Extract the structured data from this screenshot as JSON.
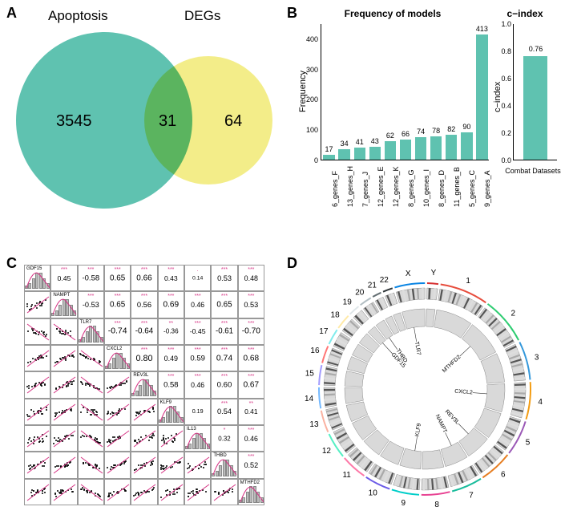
{
  "panelA": {
    "label": "A",
    "left_title": "Apoptosis",
    "right_title": "DEGs",
    "left_count": "3545",
    "intersection": "31",
    "right_count": "64",
    "left_color": "#5fc2b0",
    "right_color": "#f3ed89",
    "overlap_color": "#a7a8c9"
  },
  "panelB": {
    "label": "B",
    "freq_chart": {
      "title": "Frequency of models",
      "ylabel": "Frequency",
      "ylim": [
        0,
        450
      ],
      "ytick_step": 100,
      "bar_color": "#5fc2b0",
      "categories": [
        "6_genes_F",
        "13_genes_H",
        "7_genes_J",
        "12_genes_E",
        "12_genes_K",
        "8_genes_G",
        "10_genes_I",
        "8_genes_D",
        "11_genes_B",
        "5_genes_C",
        "9_genes_A"
      ],
      "values": [
        17,
        34,
        41,
        43,
        62,
        66,
        74,
        78,
        82,
        90,
        413
      ]
    },
    "cindex_chart": {
      "title": "c−index",
      "ylabel": "c−index",
      "xlabel": "Combat Datasets",
      "ylim": [
        0,
        1.0
      ],
      "ytick_step": 0.2,
      "bar_color": "#5fc2b0",
      "value": 0.76,
      "value_label": "0.76"
    }
  },
  "panelC": {
    "label": "C",
    "genes": [
      "GDF15",
      "NAMPT",
      "TLR7",
      "CXCL2",
      "REV3L",
      "KLF9",
      "IL13",
      "THBD",
      "MTHFD2"
    ],
    "upper": [
      [
        null,
        "0.45",
        "-0.58",
        "0.65",
        "0.66",
        "0.43",
        "0.14",
        "0.53",
        "0.48"
      ],
      [
        null,
        null,
        "-0.53",
        "0.65",
        "0.56",
        "0.69",
        "0.46",
        "0.65",
        "0.53"
      ],
      [
        null,
        null,
        null,
        "-0.74",
        "-0.64",
        "-0.36",
        "-0.45",
        "-0.61",
        "-0.70"
      ],
      [
        null,
        null,
        null,
        null,
        "0.80",
        "0.49",
        "0.59",
        "0.74",
        "0.68"
      ],
      [
        null,
        null,
        null,
        null,
        null,
        "0.58",
        "0.46",
        "0.60",
        "0.67"
      ],
      [
        null,
        null,
        null,
        null,
        null,
        null,
        "0.19",
        "0.54",
        "0.41"
      ],
      [
        null,
        null,
        null,
        null,
        null,
        null,
        null,
        "0.32",
        "0.46"
      ],
      [
        null,
        null,
        null,
        null,
        null,
        null,
        null,
        null,
        "0.52"
      ],
      [
        null,
        null,
        null,
        null,
        null,
        null,
        null,
        null,
        null
      ]
    ],
    "stars": [
      [
        null,
        "***",
        "***",
        "***",
        "***",
        "***",
        ".",
        "***",
        "***"
      ],
      [
        null,
        null,
        "***",
        "***",
        "***",
        "***",
        "***",
        "***",
        "***"
      ],
      [
        null,
        null,
        null,
        "***",
        "***",
        "**",
        "***",
        "***",
        "***"
      ],
      [
        null,
        null,
        null,
        null,
        "***",
        "***",
        "***",
        "***",
        "***"
      ],
      [
        null,
        null,
        null,
        null,
        null,
        "***",
        "***",
        "***",
        "***"
      ],
      [
        null,
        null,
        null,
        null,
        null,
        null,
        "",
        "***",
        "**"
      ],
      [
        null,
        null,
        null,
        null,
        null,
        null,
        null,
        "*",
        "***"
      ],
      [
        null,
        null,
        null,
        null,
        null,
        null,
        null,
        null,
        "***"
      ],
      [
        null,
        null,
        null,
        null,
        null,
        null,
        null,
        null,
        null
      ]
    ]
  },
  "panelD": {
    "label": "D",
    "chromosomes": [
      "1",
      "2",
      "3",
      "4",
      "5",
      "6",
      "7",
      "8",
      "9",
      "10",
      "11",
      "12",
      "13",
      "14",
      "15",
      "16",
      "17",
      "18",
      "19",
      "20",
      "21",
      "22",
      "X",
      "Y"
    ],
    "gene_labels": [
      "TLR7",
      "THBD",
      "GDF15",
      "KLF9",
      "MTHFD2",
      "CXCL2",
      "REV3L",
      "NAMPT",
      "KLF9"
    ],
    "ring_fill": "#d9d9d9",
    "ring_stroke": "#888888",
    "outer_arc_colors": [
      "#e74c3c",
      "#2ecc71",
      "#3498db",
      "#f39c12",
      "#9b59b6",
      "#e67e22",
      "#1abc9c",
      "#e84393",
      "#00cec9",
      "#6c5ce7",
      "#fd79a8",
      "#55efc4",
      "#fab1a0",
      "#74b9ff",
      "#a29bfe",
      "#ff7675",
      "#81ecec",
      "#ffeaa7",
      "#dfe6e9",
      "#b2bec3",
      "#636e72",
      "#2d3436",
      "#0984e3",
      "#d63031"
    ]
  }
}
